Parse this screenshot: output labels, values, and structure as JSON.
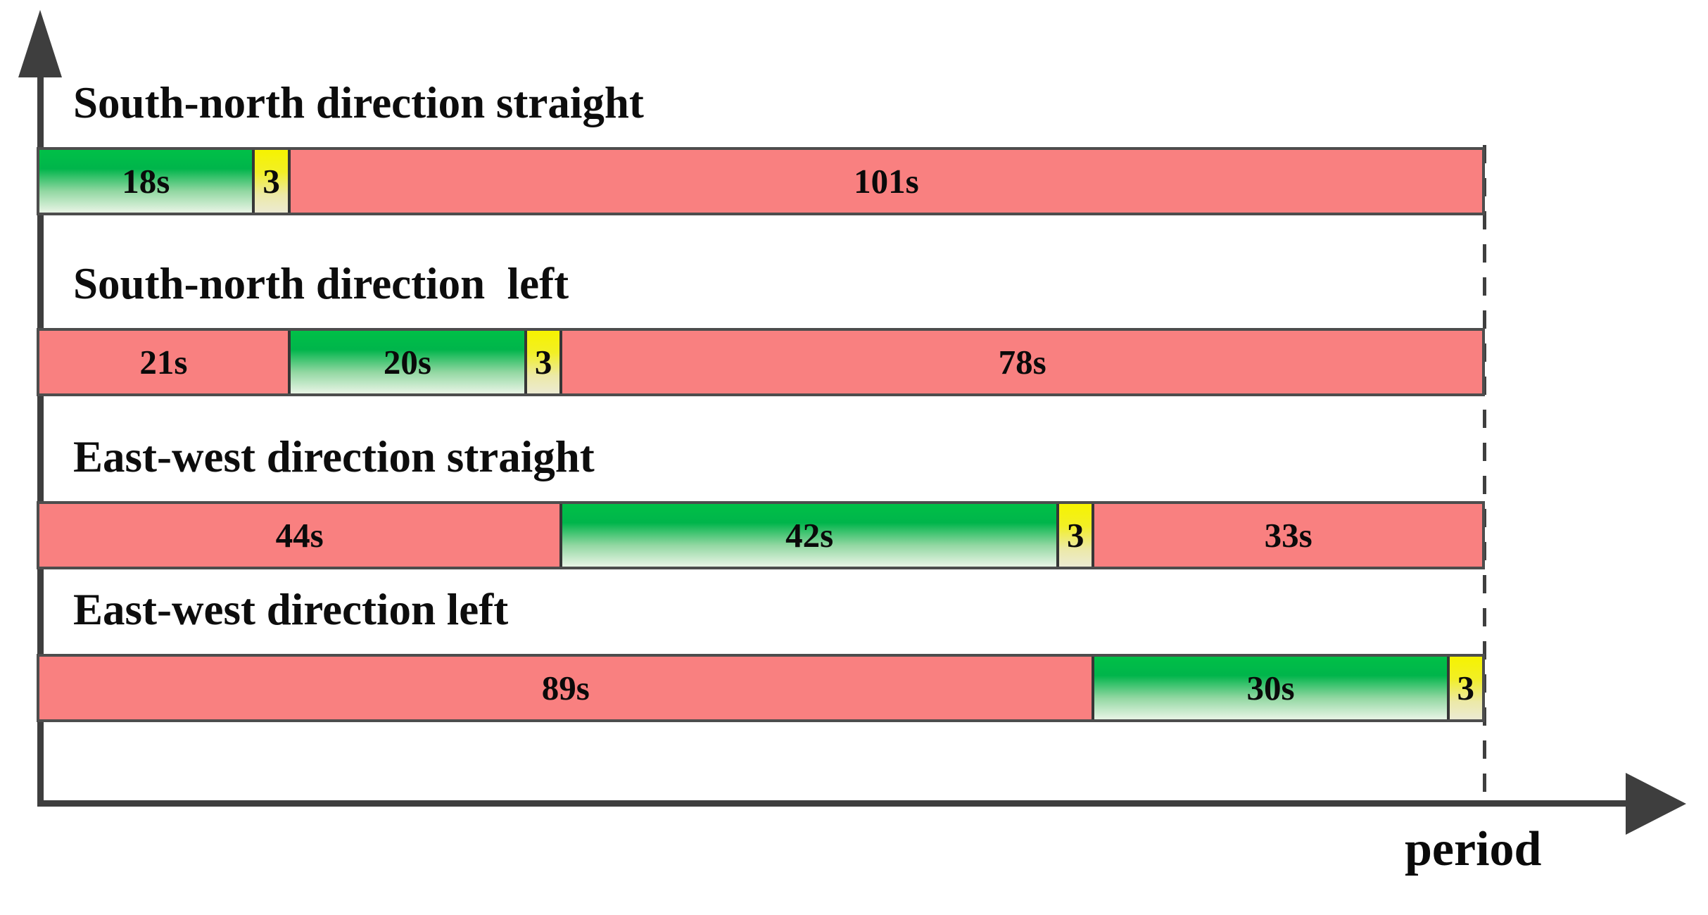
{
  "chart_data": {
    "type": "bar",
    "subtype": "signal-timing-gantt",
    "title": "",
    "xlabel": "period",
    "ylabel": "",
    "cycle_length_s": 122,
    "legend_position": "none",
    "grid": false,
    "colors": {
      "red_phase": "#f98080",
      "green_phase_top": "#00c047",
      "green_phase_bottom": "#e4f3e2",
      "yellow_phase_top": "#f6f300",
      "yellow_phase_bottom": "#ecead2",
      "axis": "#3e3e3e",
      "segment_border": "#363636",
      "text": "#0a0a0a"
    },
    "rows": [
      {
        "label": "South-north direction straight",
        "segments": [
          {
            "state": "green",
            "duration_s": 18,
            "label": "18s"
          },
          {
            "state": "yellow",
            "duration_s": 3,
            "label": "3"
          },
          {
            "state": "red",
            "duration_s": 101,
            "label": "101s"
          }
        ]
      },
      {
        "label": "South-north direction  left",
        "segments": [
          {
            "state": "red",
            "duration_s": 21,
            "label": "21s"
          },
          {
            "state": "green",
            "duration_s": 20,
            "label": "20s"
          },
          {
            "state": "yellow",
            "duration_s": 3,
            "label": "3"
          },
          {
            "state": "red",
            "duration_s": 78,
            "label": "78s"
          }
        ]
      },
      {
        "label": "East-west direction straight",
        "segments": [
          {
            "state": "red",
            "duration_s": 44,
            "label": "44s"
          },
          {
            "state": "green",
            "duration_s": 42,
            "label": "42s"
          },
          {
            "state": "yellow",
            "duration_s": 3,
            "label": "3"
          },
          {
            "state": "red",
            "duration_s": 33,
            "label": "33s"
          }
        ]
      },
      {
        "label": "East-west direction left",
        "segments": [
          {
            "state": "red",
            "duration_s": 89,
            "label": "89s"
          },
          {
            "state": "green",
            "duration_s": 30,
            "label": "30s"
          },
          {
            "state": "yellow",
            "duration_s": 3,
            "label": "3"
          }
        ]
      }
    ]
  }
}
